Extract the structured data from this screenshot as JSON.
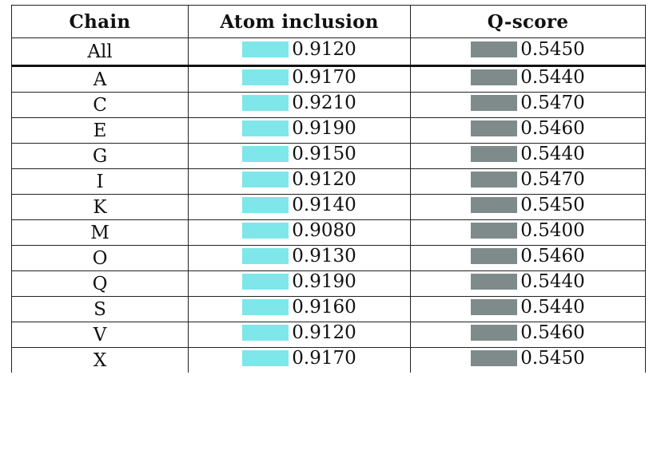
{
  "headers": {
    "chain": "Chain",
    "atom_inclusion": "Atom inclusion",
    "q_score": "Q-score"
  },
  "colors": {
    "atom_inclusion_bar": "#7fe6ea",
    "q_score_bar": "#7f8b8b"
  },
  "rows": [
    {
      "chain": "All",
      "atom_inclusion": "0.9120",
      "q_score": "0.5450"
    },
    {
      "chain": "A",
      "atom_inclusion": "0.9170",
      "q_score": "0.5440"
    },
    {
      "chain": "C",
      "atom_inclusion": "0.9210",
      "q_score": "0.5470"
    },
    {
      "chain": "E",
      "atom_inclusion": "0.9190",
      "q_score": "0.5460"
    },
    {
      "chain": "G",
      "atom_inclusion": "0.9150",
      "q_score": "0.5440"
    },
    {
      "chain": "I",
      "atom_inclusion": "0.9120",
      "q_score": "0.5470"
    },
    {
      "chain": "K",
      "atom_inclusion": "0.9140",
      "q_score": "0.5450"
    },
    {
      "chain": "M",
      "atom_inclusion": "0.9080",
      "q_score": "0.5400"
    },
    {
      "chain": "O",
      "atom_inclusion": "0.9130",
      "q_score": "0.5460"
    },
    {
      "chain": "Q",
      "atom_inclusion": "0.9190",
      "q_score": "0.5440"
    },
    {
      "chain": "S",
      "atom_inclusion": "0.9160",
      "q_score": "0.5440"
    },
    {
      "chain": "V",
      "atom_inclusion": "0.9120",
      "q_score": "0.5460"
    },
    {
      "chain": "X",
      "atom_inclusion": "0.9170",
      "q_score": "0.5450"
    }
  ]
}
